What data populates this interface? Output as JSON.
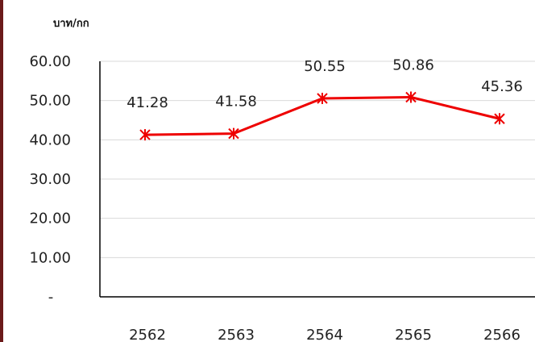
{
  "chart_data": {
    "type": "line",
    "title": "",
    "ylabel": "บาท/กก",
    "xlabel": "",
    "categories": [
      "2562",
      "2563",
      "2564",
      "2565",
      "2566"
    ],
    "series": [
      {
        "values": [
          41.28,
          41.58,
          50.55,
          50.86,
          45.36
        ],
        "color": "#ee0000",
        "marker": "asterisk"
      }
    ],
    "data_labels": [
      "41.28",
      "41.58",
      "50.55",
      "50.86",
      "45.36"
    ],
    "y_ticks": [
      0,
      10,
      20,
      30,
      40,
      50,
      60
    ],
    "y_tick_labels": [
      "-",
      "10.00",
      "20.00",
      "30.00",
      "40.00",
      "50.00",
      "60.00"
    ],
    "ylim": [
      0,
      60
    ],
    "grid": true,
    "legend": "none"
  },
  "colors": {
    "line": "#ee0000",
    "grid": "#d9d9d9",
    "axis": "#000000",
    "left_border": "#6b1a1a"
  }
}
